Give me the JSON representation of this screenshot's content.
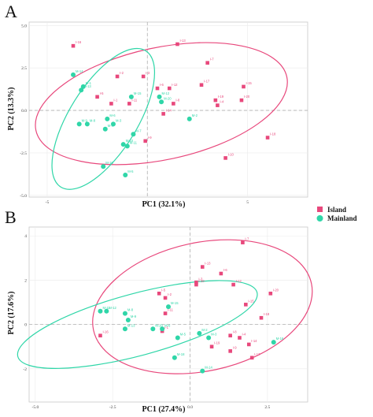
{
  "colors": {
    "island": "#e8487c",
    "mainland": "#2fd6a8",
    "grid": "#ebebeb",
    "frame": "#c8c8c8",
    "refline": "#b0b0b0"
  },
  "legend": {
    "items": [
      {
        "label": "Island",
        "color": "#e8487c",
        "shape": "square"
      },
      {
        "label": "Mainland",
        "color": "#2fd6a8",
        "shape": "circle"
      }
    ]
  },
  "chart_data": [
    {
      "panel": "A",
      "type": "scatter",
      "xlabel": "PC1 (32.1%)",
      "ylabel": "PC2 (13.3%)",
      "xlim": [
        -5.9,
        8.0
      ],
      "ylim": [
        -5.1,
        5.2
      ],
      "xticks": [
        -5,
        0,
        5
      ],
      "yticks": [
        -5.0,
        -2.5,
        0.0,
        2.5,
        5.0
      ],
      "ytick_labels": [
        "-5.0",
        "-2.5",
        "0.0",
        "2.5",
        "5.0"
      ],
      "grid": true,
      "ellipses": [
        {
          "group": "Island",
          "cx": 0.7,
          "cy": 0.4,
          "rx": 6.4,
          "ry": 3.3,
          "angle": -12
        },
        {
          "group": "Mainland",
          "cx": -2.2,
          "cy": -0.5,
          "rx": 4.0,
          "ry": 2.0,
          "angle": -58
        }
      ],
      "series": [
        {
          "name": "Island",
          "points": [
            {
              "label": "I-16",
              "x": -3.7,
              "y": 3.8
            },
            {
              "label": "I-13",
              "x": 1.5,
              "y": 3.9
            },
            {
              "label": "I-7",
              "x": 3.0,
              "y": 2.8
            },
            {
              "label": "I-3",
              "x": -0.2,
              "y": 2.0
            },
            {
              "label": "I-2",
              "x": -1.5,
              "y": 2.0
            },
            {
              "label": "I-17",
              "x": 2.7,
              "y": 1.5
            },
            {
              "label": "I-15",
              "x": 4.8,
              "y": 1.4
            },
            {
              "label": "I-6",
              "x": 0.5,
              "y": 1.3
            },
            {
              "label": "I-12",
              "x": 1.1,
              "y": 1.3
            },
            {
              "label": "I-5",
              "x": -2.5,
              "y": 0.8
            },
            {
              "label": "I-20",
              "x": 4.7,
              "y": 0.6
            },
            {
              "label": "I-1",
              "x": -1.8,
              "y": 0.4
            },
            {
              "label": "I-11",
              "x": -0.9,
              "y": 0.4
            },
            {
              "label": "I-19",
              "x": 3.4,
              "y": 0.6
            },
            {
              "label": "I-4",
              "x": 3.5,
              "y": 0.3
            },
            {
              "label": "I-8",
              "x": 1.3,
              "y": 0.4
            },
            {
              "label": "I-14",
              "x": 0.8,
              "y": -0.2
            },
            {
              "label": "I-18",
              "x": 6.0,
              "y": -1.6
            },
            {
              "label": "I-9",
              "x": -0.1,
              "y": -1.8
            },
            {
              "label": "I-10",
              "x": 3.9,
              "y": -2.8
            }
          ]
        },
        {
          "name": "Mainland",
          "points": [
            {
              "label": "M-14",
              "x": -3.7,
              "y": 2.1
            },
            {
              "label": "M-1",
              "x": -3.2,
              "y": 1.4
            },
            {
              "label": "M-13",
              "x": -3.3,
              "y": 1.2
            },
            {
              "label": "M-15",
              "x": -0.8,
              "y": 0.8
            },
            {
              "label": "M-12",
              "x": 0.6,
              "y": 0.8
            },
            {
              "label": "M-20",
              "x": 0.7,
              "y": 0.5
            },
            {
              "label": "M-2",
              "x": 2.1,
              "y": -0.5
            },
            {
              "label": "M-6",
              "x": -2.0,
              "y": -0.5
            },
            {
              "label": "M-9",
              "x": -3.4,
              "y": -0.8
            },
            {
              "label": "M-8",
              "x": -3.0,
              "y": -0.8
            },
            {
              "label": "M-4",
              "x": -2.1,
              "y": -1.1
            },
            {
              "label": "M-3",
              "x": -1.7,
              "y": -0.8
            },
            {
              "label": "M-7",
              "x": -0.7,
              "y": -1.4
            },
            {
              "label": "M-10",
              "x": -1.2,
              "y": -2.0
            },
            {
              "label": "M-11",
              "x": -1.0,
              "y": -2.1
            },
            {
              "label": "M-16",
              "x": -2.2,
              "y": -3.3
            },
            {
              "label": "M-5",
              "x": -1.1,
              "y": -3.8
            }
          ]
        }
      ]
    },
    {
      "panel": "B",
      "type": "scatter",
      "xlabel": "PC1 (27.4%)",
      "ylabel": "PC2 (17.6%)",
      "xlim": [
        -5.2,
        3.8
      ],
      "ylim": [
        -3.5,
        4.4
      ],
      "xticks": [
        -5,
        -2.5,
        0,
        2.5
      ],
      "xtick_labels": [
        "-5.0",
        "-2.5",
        "0.0",
        "2.5"
      ],
      "yticks": [
        -2,
        0,
        2,
        4
      ],
      "ytick_labels": [
        "-2",
        "0",
        "2",
        "4"
      ],
      "grid": true,
      "ellipses": [
        {
          "group": "Island",
          "cx": 0.4,
          "cy": 0.8,
          "rx": 3.6,
          "ry": 2.9,
          "angle": -12
        },
        {
          "group": "Mainland",
          "cx": -1.7,
          "cy": 0.0,
          "rx": 4.0,
          "ry": 1.4,
          "angle": -15
        }
      ],
      "series": [
        {
          "name": "Island",
          "points": [
            {
              "label": "I-7",
              "x": 1.7,
              "y": 3.7
            },
            {
              "label": "I-13",
              "x": 0.4,
              "y": 2.6
            },
            {
              "label": "I-6",
              "x": 1.0,
              "y": 2.3
            },
            {
              "label": "I-12",
              "x": 1.4,
              "y": 1.8
            },
            {
              "label": "I-3",
              "x": 0.2,
              "y": 1.9
            },
            {
              "label": "I-20",
              "x": 2.6,
              "y": 1.4
            },
            {
              "label": "I-5",
              "x": -1.0,
              "y": 1.4
            },
            {
              "label": "I-2",
              "x": -0.8,
              "y": 1.2
            },
            {
              "label": "I-15",
              "x": 1.8,
              "y": 0.9
            },
            {
              "label": "I-1",
              "x": -0.9,
              "y": -0.3
            },
            {
              "label": "I-10",
              "x": 0.2,
              "y": 1.8
            },
            {
              "label": "I-8",
              "x": 1.3,
              "y": -0.5
            },
            {
              "label": "I-4",
              "x": 1.6,
              "y": -0.6
            },
            {
              "label": "I-18",
              "x": 2.3,
              "y": 0.3
            },
            {
              "label": "I-19",
              "x": 0.7,
              "y": -1.0
            },
            {
              "label": "I-9",
              "x": 1.3,
              "y": -1.2
            },
            {
              "label": "I-14",
              "x": 1.9,
              "y": -0.9
            },
            {
              "label": "I-16",
              "x": -2.9,
              "y": -0.5
            },
            {
              "label": "I-11",
              "x": -0.8,
              "y": 0.5
            },
            {
              "label": "I-17",
              "x": 2.0,
              "y": -1.5
            }
          ]
        },
        {
          "name": "Mainland",
          "points": [
            {
              "label": "M-11",
              "x": -2.9,
              "y": 0.6
            },
            {
              "label": "M-12",
              "x": -2.7,
              "y": 0.6
            },
            {
              "label": "M-8",
              "x": -2.1,
              "y": 0.5
            },
            {
              "label": "M-9",
              "x": -2.0,
              "y": 0.2
            },
            {
              "label": "M-15",
              "x": -0.7,
              "y": 0.8
            },
            {
              "label": "M-13",
              "x": -2.1,
              "y": -0.2
            },
            {
              "label": "M-20",
              "x": -1.2,
              "y": -0.2
            },
            {
              "label": "M-16",
              "x": 2.7,
              "y": -0.8
            },
            {
              "label": "M-5",
              "x": -0.4,
              "y": -0.6
            },
            {
              "label": "M-2",
              "x": 0.3,
              "y": -0.4
            },
            {
              "label": "M-18",
              "x": -0.5,
              "y": -1.5
            },
            {
              "label": "M-14",
              "x": 0.4,
              "y": -2.1
            },
            {
              "label": "M-3",
              "x": 0.6,
              "y": -0.6
            },
            {
              "label": "M-6",
              "x": -0.9,
              "y": -0.2
            }
          ]
        }
      ]
    }
  ]
}
